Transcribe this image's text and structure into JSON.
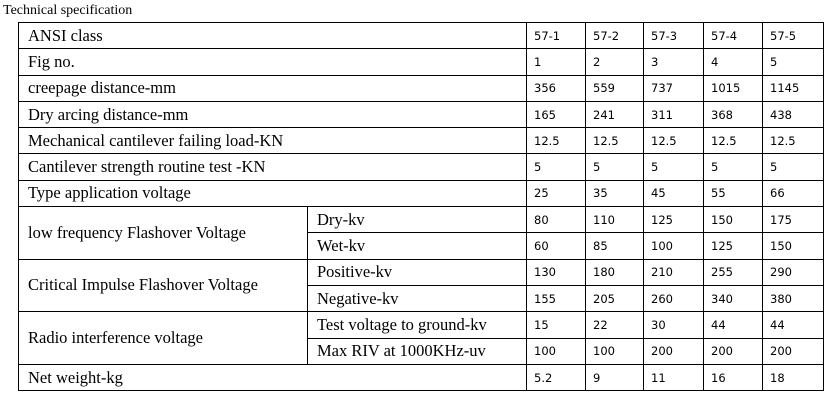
{
  "caption": "Technical specification",
  "table": {
    "rows": [
      {
        "label": "ANSI class",
        "values": [
          "57-1",
          "57-2",
          "57-3",
          "57-4",
          "57-5"
        ]
      },
      {
        "label": "Fig no.",
        "values": [
          1,
          2,
          3,
          4,
          5
        ]
      },
      {
        "label": "creepage distance-mm",
        "values": [
          356,
          559,
          737,
          1015,
          1145
        ]
      },
      {
        "label": "Dry arcing distance-mm",
        "values": [
          165,
          241,
          311,
          368,
          438
        ]
      },
      {
        "label": "Mechanical cantilever failing load-KN",
        "values": [
          12.5,
          12.5,
          12.5,
          12.5,
          12.5
        ]
      },
      {
        "label": "Cantilever strength routine test -KN",
        "values": [
          5,
          5,
          5,
          5,
          5
        ]
      },
      {
        "label": "Type application voltage",
        "values": [
          25,
          35,
          45,
          55,
          66
        ]
      },
      {
        "label": "low frequency Flashover Voltage",
        "subrows": [
          {
            "label": "Dry-kv",
            "values": [
              80,
              110,
              125,
              150,
              175
            ]
          },
          {
            "label": "Wet-kv",
            "values": [
              60,
              85,
              100,
              125,
              150
            ]
          }
        ]
      },
      {
        "label": "Critical Impulse Flashover Voltage",
        "subrows": [
          {
            "label": "Positive-kv",
            "values": [
              130,
              180,
              210,
              255,
              290
            ]
          },
          {
            "label": "Negative-kv",
            "values": [
              155,
              205,
              260,
              340,
              380
            ]
          }
        ]
      },
      {
        "label": "Radio interference voltage",
        "subrows": [
          {
            "label": "Test voltage to ground-kv",
            "values": [
              15,
              22,
              30,
              44,
              44
            ]
          },
          {
            "label": "Max RIV at 1000KHz-uv",
            "values": [
              100,
              100,
              200,
              200,
              200
            ]
          }
        ]
      },
      {
        "label": "Net weight-kg",
        "values": [
          5.2,
          9,
          11,
          16,
          18
        ]
      }
    ]
  }
}
